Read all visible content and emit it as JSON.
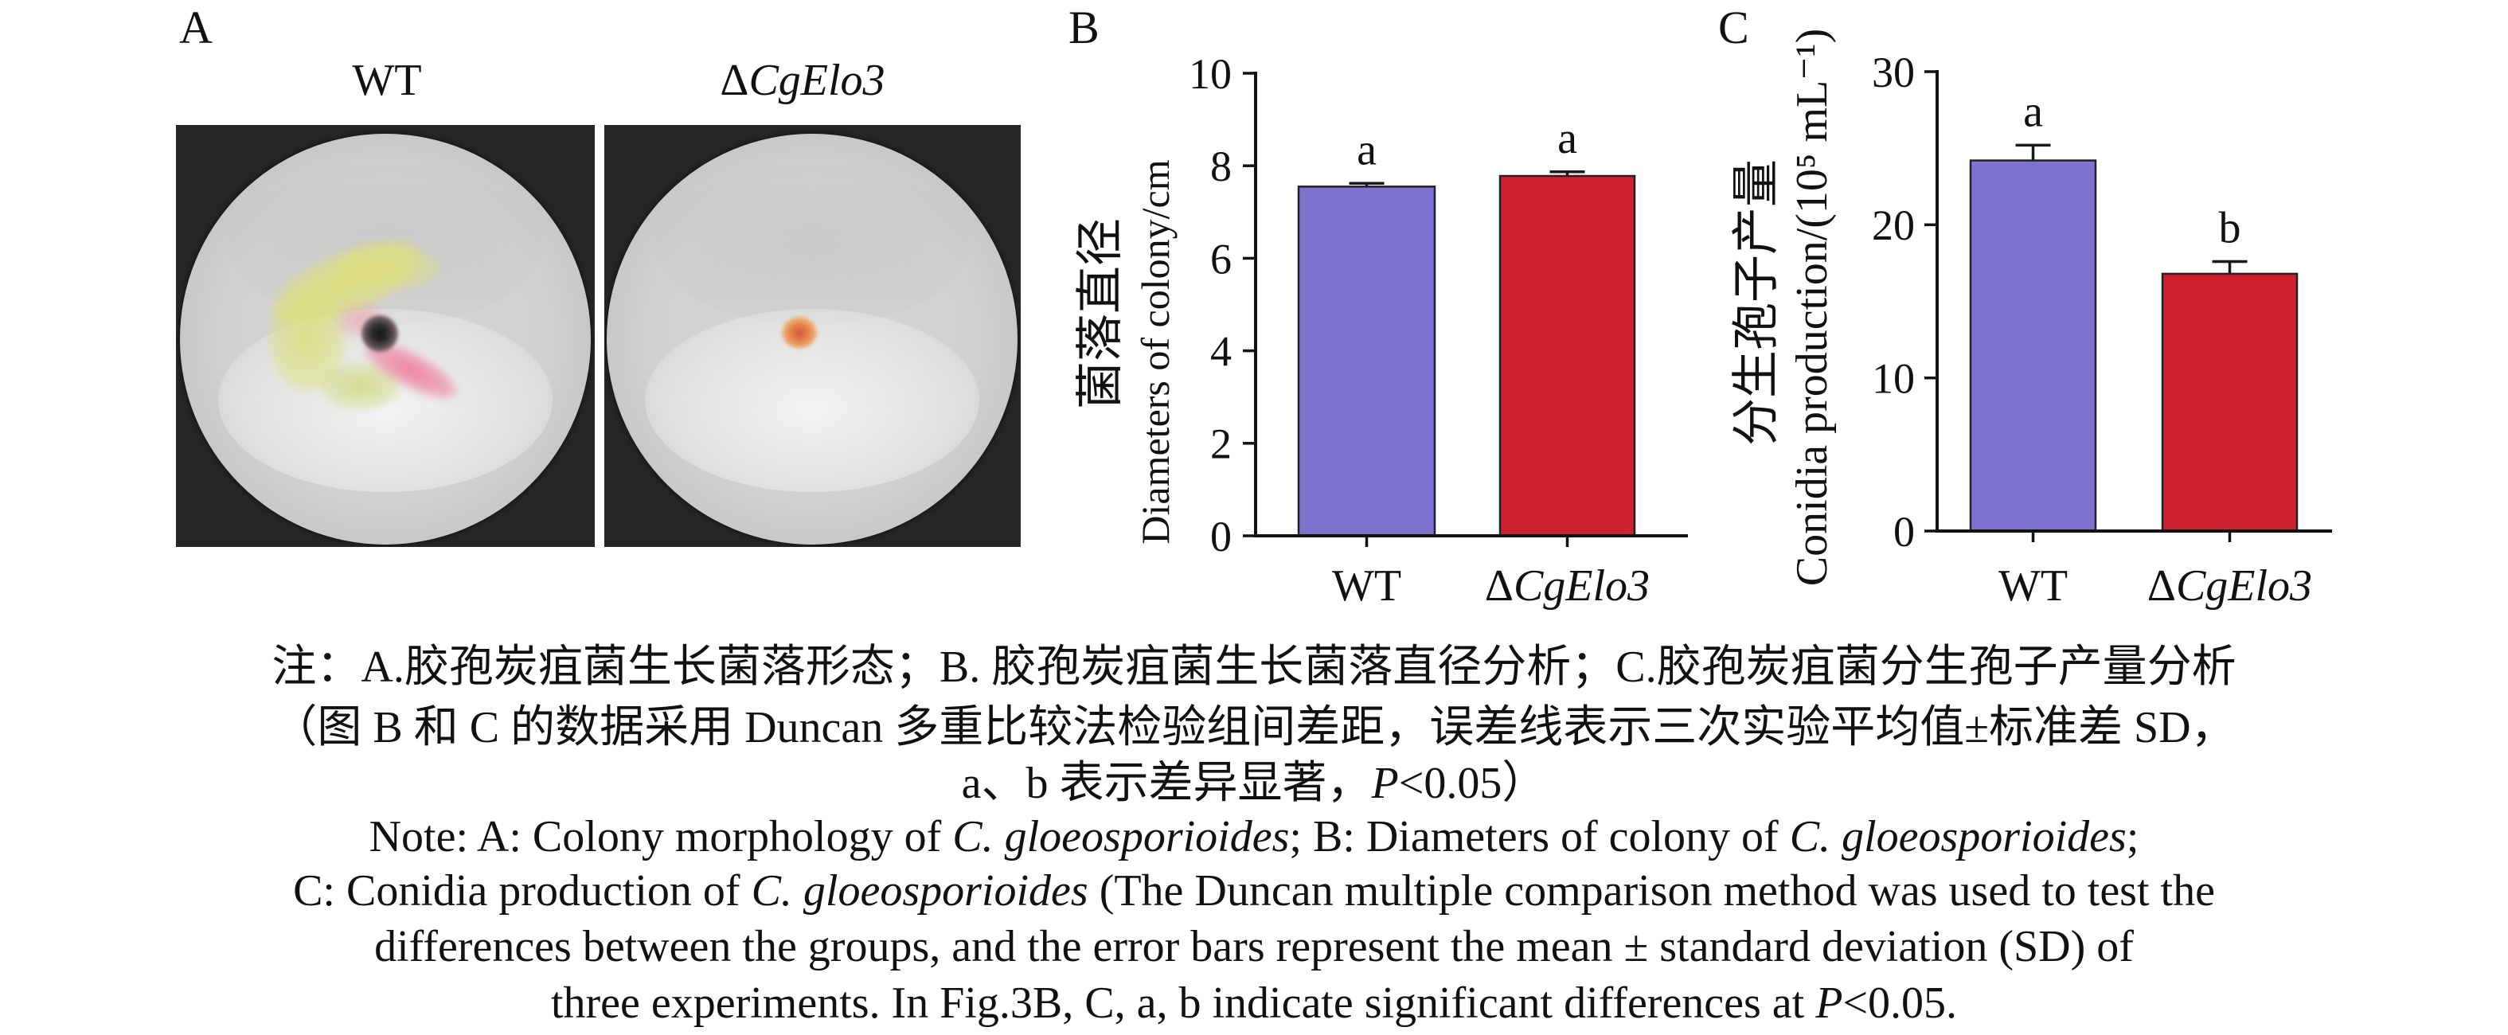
{
  "panel_a": {
    "letter": "A",
    "labels": [
      "WT",
      "ΔCgElo3"
    ]
  },
  "chart_data": [
    {
      "panel": "B",
      "type": "bar",
      "categories": [
        "WT",
        "ΔCgElo3"
      ],
      "values": [
        7.55,
        7.78
      ],
      "error_sd": [
        0.07,
        0.09
      ],
      "significance": [
        "a",
        "a"
      ],
      "xlabel": "",
      "ylabel": "Diameters of colony/cm",
      "ylabel_zh": "菌落直径",
      "ylim": [
        0,
        10
      ],
      "yticks": [
        0,
        2,
        4,
        6,
        8,
        10
      ],
      "colors": [
        "#7d73cf",
        "#cf2030"
      ],
      "grid": false
    },
    {
      "panel": "C",
      "type": "bar",
      "categories": [
        "WT",
        "ΔCgElo3"
      ],
      "values": [
        24.2,
        16.8
      ],
      "error_sd": [
        1.0,
        0.8
      ],
      "significance": [
        "a",
        "b"
      ],
      "xlabel": "",
      "ylabel": "Conidia production/(10⁵ mL⁻¹)",
      "ylabel_zh": "分生孢子产量",
      "ylim": [
        0,
        30
      ],
      "yticks": [
        0,
        10,
        20,
        30
      ],
      "colors": [
        "#7d73cf",
        "#cf2030"
      ],
      "grid": false
    }
  ],
  "caption": {
    "lines": [
      [
        "注：A.胶孢炭疽菌生长菌落形态；B. 胶孢炭疽菌生长菌落直径分析；C.胶孢炭疽菌分生孢子产量分析"
      ],
      [
        "（图 B 和 C 的数据采用 Duncan 多重比较法检验组间差距，误差线表示三次实验平均值±标准差 SD，"
      ],
      [
        "a、b 表示差异显著，",
        "P",
        "<0.05）"
      ],
      [
        "Note: A: Colony morphology of ",
        "C. gloeosporioides",
        "; B: Diameters of colony of ",
        "C. gloeosporioides",
        ";"
      ],
      [
        "C: Conidia production of ",
        "C. gloeosporioides",
        " (The Duncan multiple comparison method was used to test the"
      ],
      [
        "differences between the groups, and the error bars represent the mean ± standard deviation (SD) of"
      ],
      [
        "three experiments. In Fig.3B, C, a, b indicate significant differences at ",
        "P",
        "<0.05."
      ]
    ]
  }
}
